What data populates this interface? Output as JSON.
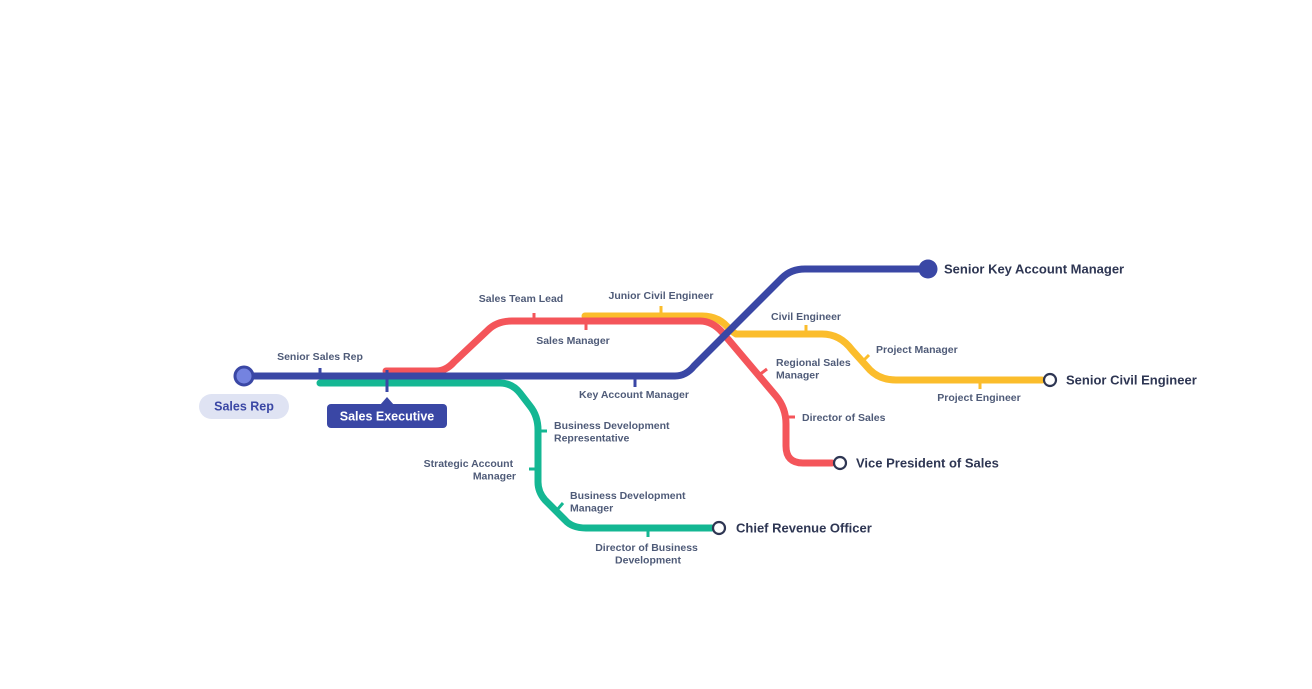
{
  "colors": {
    "blue": "#3a47a5",
    "red": "#f4555a",
    "yellow": "#fbbd2c",
    "green": "#14b793",
    "start_pill_bg": "#dfe3f3",
    "start_dot_fill": "#7483e0",
    "current_pill_bg": "#3a47a5"
  },
  "start": {
    "label": "Sales Rep"
  },
  "current": {
    "label": "Sales Executive"
  },
  "stops": {
    "senior_sales_rep": "Senior Sales Rep",
    "sales_team_lead": "Sales Team Lead",
    "sales_manager": "Sales Manager",
    "junior_civil_engineer": "Junior Civil Engineer",
    "civil_engineer": "Civil Engineer",
    "project_manager": "Project Manager",
    "project_engineer": "Project Engineer",
    "regional_sales_manager": [
      "Regional Sales",
      "Manager"
    ],
    "director_of_sales": "Director of Sales",
    "key_account_manager": "Key Account Manager",
    "bd_representative": [
      "Business Development",
      "Representative"
    ],
    "strategic_account_manager": [
      "Strategic Account",
      "Manager"
    ],
    "bd_manager": [
      "Business Development",
      "Manager"
    ],
    "director_of_bd": [
      "Director of Business",
      "Development"
    ]
  },
  "destinations": {
    "senior_key_account_manager": "Senior Key Account Manager",
    "senior_civil_engineer": "Senior Civil Engineer",
    "vice_president_of_sales": "Vice President of Sales",
    "chief_revenue_officer": "Chief Revenue Officer"
  }
}
